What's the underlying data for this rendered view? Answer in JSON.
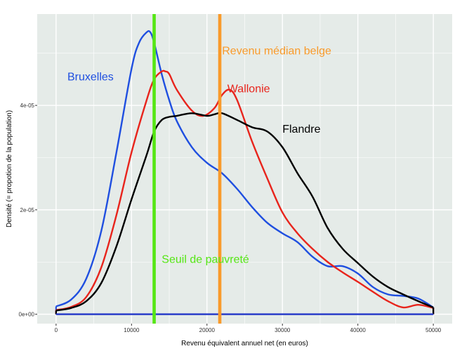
{
  "chart_data": {
    "type": "line",
    "title": "",
    "xlabel": "Revenu équivalent annuel net (en euros)",
    "ylabel": "Densité (= propotion de la population)",
    "xlim": [
      -2500,
      52500
    ],
    "ylim": [
      -1.8e-06,
      5.75e-05
    ],
    "x_ticks": [
      0,
      10000,
      20000,
      30000,
      40000,
      50000
    ],
    "x_tick_labels": [
      "0",
      "10000",
      "20000",
      "30000",
      "40000",
      "50000"
    ],
    "y_ticks": [
      0,
      2e-05,
      4e-05
    ],
    "y_tick_labels": [
      "0e+00",
      "2e-05",
      "4e-05"
    ],
    "grid": true,
    "legend": "none",
    "series": [
      {
        "name": "Bruxelles",
        "color": "#1f4fe0",
        "x": [
          0,
          2000,
          4000,
          6000,
          8000,
          10000,
          11000,
          12000,
          12500,
          13000,
          14000,
          15000,
          16000,
          18000,
          20000,
          22000,
          24000,
          26000,
          28000,
          30000,
          32000,
          34000,
          36000,
          38000,
          40000,
          42000,
          44000,
          46000,
          48000,
          50000
        ],
        "y": [
          1.5e-06,
          2.8e-06,
          6.8e-06,
          1.6e-05,
          3.1e-05,
          4.7e-05,
          5.2e-05,
          5.4e-05,
          5.4e-05,
          5.2e-05,
          4.6e-05,
          4.1e-05,
          3.7e-05,
          3.2e-05,
          2.9e-05,
          2.7e-05,
          2.4e-05,
          2.05e-05,
          1.75e-05,
          1.55e-05,
          1.38e-05,
          1.1e-05,
          9.2e-06,
          9.2e-06,
          7.8e-06,
          5.2e-06,
          3.8e-06,
          3.5e-06,
          3e-06,
          1.3e-06
        ]
      },
      {
        "name": "Wallonie",
        "color": "#e8241c",
        "x": [
          0,
          2000,
          4000,
          6000,
          8000,
          10000,
          12000,
          13000,
          14000,
          14500,
          15000,
          16000,
          18000,
          19500,
          21000,
          22000,
          23000,
          24000,
          26000,
          28000,
          30000,
          32000,
          34000,
          36000,
          38000,
          40000,
          42000,
          44000,
          46000,
          48000,
          50000
        ],
        "y": [
          8e-07,
          1.4e-06,
          3.3e-06,
          9e-06,
          1.9e-05,
          3.1e-05,
          4.1e-05,
          4.5e-05,
          4.65e-05,
          4.65e-05,
          4.6e-05,
          4.3e-05,
          3.9e-05,
          3.8e-05,
          3.95e-05,
          4.2e-05,
          4.3e-05,
          4.1e-05,
          3.3e-05,
          2.6e-05,
          1.95e-05,
          1.55e-05,
          1.25e-05,
          1e-05,
          8e-06,
          6.2e-06,
          4.3e-06,
          2.5e-06,
          1.3e-06,
          1.8e-06,
          1.2e-06
        ]
      },
      {
        "name": "Flandre",
        "color": "#000000",
        "x": [
          0,
          2000,
          4000,
          6000,
          8000,
          10000,
          12000,
          13000,
          14000,
          15000,
          16000,
          18000,
          20000,
          21000,
          22000,
          24000,
          26000,
          28000,
          30000,
          32000,
          34000,
          36000,
          38000,
          40000,
          42000,
          44000,
          46000,
          48000,
          50000
        ],
        "y": [
          7e-07,
          1.2e-06,
          2.5e-06,
          6e-06,
          1.3e-05,
          2.2e-05,
          3.05e-05,
          3.5e-05,
          3.72e-05,
          3.78e-05,
          3.8e-05,
          3.85e-05,
          3.8e-05,
          3.83e-05,
          3.85e-05,
          3.72e-05,
          3.58e-05,
          3.5e-05,
          3.2e-05,
          2.7e-05,
          2.25e-05,
          1.65e-05,
          1.25e-05,
          9.8e-06,
          7.2e-06,
          5.2e-06,
          3.8e-06,
          2.5e-06,
          1.3e-06
        ]
      }
    ],
    "reference_lines": [
      {
        "label": "Seuil de pauvreté",
        "x": 13000,
        "color": "#55e614"
      },
      {
        "label": "Revenu médian belge",
        "x": 21700,
        "color": "#f99a2a"
      }
    ],
    "baseline_color": "#2a3ec9",
    "annotations": [
      {
        "text": "Bruxelles",
        "x": 1500,
        "y": 4.48e-05,
        "color": "#1f4fe0"
      },
      {
        "text": "Wallonie",
        "x": 22700,
        "y": 4.25e-05,
        "color": "#e8241c"
      },
      {
        "text": "Flandre",
        "x": 30000,
        "y": 3.48e-05,
        "color": "#000000"
      },
      {
        "text": "Revenu médian belge",
        "x": 22000,
        "y": 4.98e-05,
        "color": "#f99a2a"
      },
      {
        "text": "Seuil de pauvreté",
        "x": 14000,
        "y": 9.8e-06,
        "color": "#55e614"
      }
    ]
  }
}
